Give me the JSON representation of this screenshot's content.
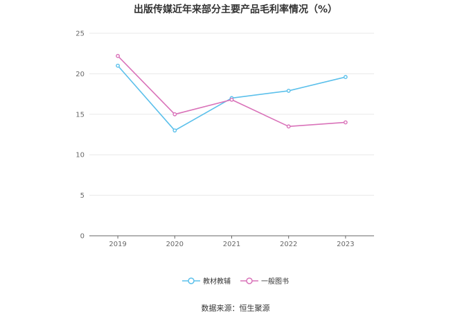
{
  "chart_data": {
    "type": "line",
    "title": "出版传媒近年来部分主要产品毛利率情况（%）",
    "categories": [
      "2019",
      "2020",
      "2021",
      "2022",
      "2023"
    ],
    "series": [
      {
        "name": "教材教辅",
        "color": "#5bc0eb",
        "values": [
          21.0,
          13.0,
          17.0,
          17.9,
          19.6
        ]
      },
      {
        "name": "一般图书",
        "color": "#d972b9",
        "values": [
          22.2,
          15.0,
          16.8,
          13.5,
          14.0
        ]
      }
    ],
    "ylim": [
      0,
      25
    ],
    "yticks": [
      "0",
      "5",
      "10",
      "15",
      "20",
      "25"
    ],
    "grid": true,
    "legend": "bottom",
    "source": "数据来源：恒生聚源"
  }
}
